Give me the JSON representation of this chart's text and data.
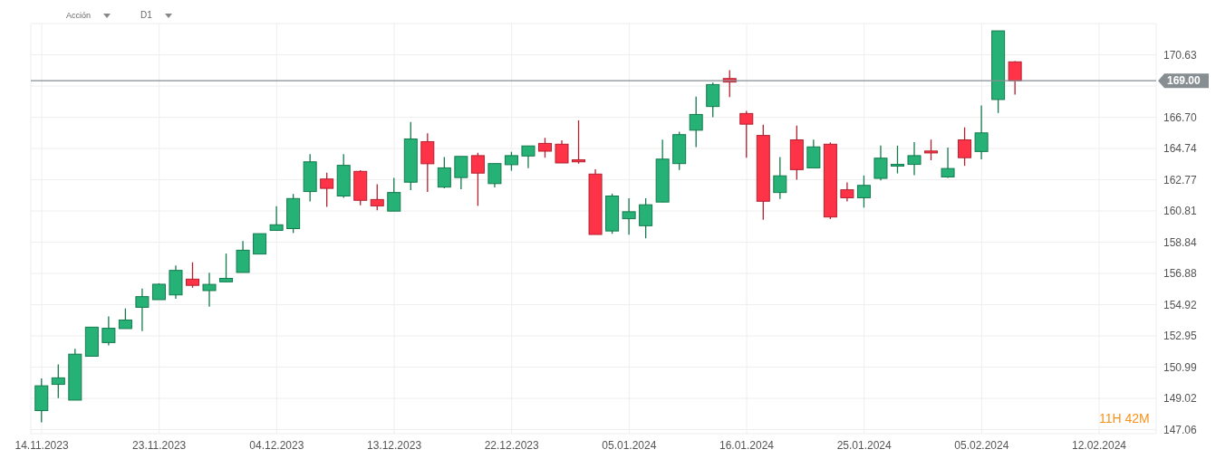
{
  "chart_data": {
    "type": "candlestick",
    "categories": [
      "14.11.2023",
      null,
      null,
      null,
      null,
      null,
      null,
      "23.11.2023",
      null,
      null,
      null,
      null,
      null,
      null,
      "04.12.2023",
      null,
      null,
      null,
      null,
      null,
      null,
      "13.12.2023",
      null,
      null,
      null,
      null,
      null,
      null,
      "22.12.2023",
      null,
      null,
      null,
      null,
      null,
      null,
      "05.01.2024",
      null,
      null,
      null,
      null,
      null,
      null,
      "16.01.2024",
      null,
      null,
      null,
      null,
      null,
      null,
      "25.01.2024",
      null,
      null,
      null,
      null,
      null,
      null,
      "05.02.2024",
      null,
      null,
      null,
      null,
      null,
      null,
      "12.02.2024"
    ],
    "ohlc": [
      [
        148.25,
        150.27,
        147.51,
        149.81
      ],
      [
        149.9,
        151.15,
        149.04,
        150.31
      ],
      [
        148.91,
        152.14,
        148.91,
        151.8
      ],
      [
        151.67,
        153.5,
        151.67,
        153.5
      ],
      [
        152.53,
        154.18,
        152.35,
        153.43
      ],
      [
        153.41,
        154.68,
        153.41,
        153.95
      ],
      [
        154.75,
        155.93,
        153.25,
        155.42
      ],
      [
        155.23,
        156.26,
        155.23,
        156.2
      ],
      [
        155.53,
        157.38,
        155.29,
        157.07
      ],
      [
        156.52,
        157.58,
        155.98,
        156.13
      ],
      [
        155.8,
        156.92,
        154.79,
        156.19
      ],
      [
        156.35,
        158.13,
        156.35,
        156.57
      ],
      [
        156.94,
        158.91,
        156.94,
        158.34
      ],
      [
        158.1,
        159.38,
        158.1,
        159.38
      ],
      [
        159.59,
        161.11,
        159.59,
        159.94
      ],
      [
        159.7,
        161.88,
        159.42,
        161.59
      ],
      [
        162.03,
        164.38,
        161.41,
        163.9
      ],
      [
        162.82,
        163.21,
        161.07,
        162.23
      ],
      [
        161.75,
        164.38,
        161.63,
        163.68
      ],
      [
        163.3,
        163.37,
        161.17,
        161.48
      ],
      [
        161.53,
        162.49,
        160.85,
        161.13
      ],
      [
        160.8,
        162.89,
        160.8,
        161.97
      ],
      [
        162.62,
        166.4,
        162.12,
        165.34
      ],
      [
        165.17,
        165.69,
        162.0,
        163.78
      ],
      [
        162.31,
        164.2,
        162.23,
        163.52
      ],
      [
        162.91,
        164.24,
        162.18,
        164.24
      ],
      [
        164.29,
        164.47,
        161.13,
        163.19
      ],
      [
        162.53,
        163.79,
        162.29,
        163.79
      ],
      [
        163.72,
        164.53,
        163.34,
        164.29
      ],
      [
        164.27,
        164.9,
        163.5,
        164.9
      ],
      [
        165.06,
        165.41,
        164.16,
        164.57
      ],
      [
        165.01,
        165.25,
        163.83,
        163.83
      ],
      [
        164.03,
        166.51,
        163.78,
        163.9
      ],
      [
        163.13,
        163.43,
        159.33,
        159.33
      ],
      [
        159.55,
        161.9,
        159.37,
        161.75
      ],
      [
        160.32,
        161.61,
        159.31,
        160.76
      ],
      [
        159.88,
        161.61,
        159.09,
        161.2
      ],
      [
        161.37,
        165.3,
        161.37,
        164.07
      ],
      [
        163.79,
        165.8,
        163.39,
        165.61
      ],
      [
        165.89,
        168.0,
        164.82,
        166.88
      ],
      [
        167.38,
        168.88,
        166.7,
        168.76
      ],
      [
        169.14,
        169.66,
        167.97,
        168.92
      ],
      [
        166.94,
        167.1,
        164.16,
        166.27
      ],
      [
        165.56,
        166.24,
        160.25,
        161.42
      ],
      [
        161.97,
        164.2,
        161.57,
        163.02
      ],
      [
        165.28,
        166.18,
        162.78,
        163.41
      ],
      [
        163.52,
        165.3,
        163.52,
        164.84
      ],
      [
        165.01,
        165.12,
        160.3,
        160.43
      ],
      [
        162.14,
        162.6,
        161.41,
        161.64
      ],
      [
        161.64,
        163.04,
        161.02,
        162.42
      ],
      [
        162.86,
        164.92,
        162.73,
        164.13
      ],
      [
        163.63,
        164.92,
        163.17,
        163.74
      ],
      [
        163.74,
        165.14,
        163.06,
        164.29
      ],
      [
        164.58,
        165.3,
        164.0,
        164.46
      ],
      [
        162.95,
        164.8,
        162.89,
        163.48
      ],
      [
        165.28,
        166.07,
        163.65,
        164.16
      ],
      [
        164.55,
        167.45,
        164.05,
        165.72
      ],
      [
        167.82,
        172.14,
        166.97,
        172.14
      ],
      [
        170.19,
        170.24,
        168.13,
        169.0
      ],
      null,
      null,
      null,
      null,
      null
    ],
    "colors": [
      "#26b276",
      "#26b276",
      "#26b276",
      "#26b276",
      "#26b276",
      "#26b276",
      "#26b276",
      "#26b276",
      "#26b276",
      "#ff3347",
      "#26b276",
      "#26b276",
      "#26b276",
      "#26b276",
      "#26b276",
      "#26b276",
      "#26b276",
      "#ff3347",
      "#26b276",
      "#ff3347",
      "#ff3347",
      "#26b276",
      "#26b276",
      "#ff3347",
      "#26b276",
      "#26b276",
      "#ff3347",
      "#26b276",
      "#26b276",
      "#26b276",
      "#ff3347",
      "#ff3347",
      "#ff3347",
      "#ff3347",
      "#26b276",
      "#26b276",
      "#26b276",
      "#26b276",
      "#26b276",
      "#26b276",
      "#26b276",
      "#ff3347",
      "#ff3347",
      "#ff3347",
      "#26b276",
      "#ff3347",
      "#26b276",
      "#ff3347",
      "#ff3347",
      "#26b276",
      "#26b276",
      "#26b276",
      "#26b276",
      "#ff3347",
      "#26b276",
      "#ff3347",
      "#26b276",
      "#26b276",
      "#ff3347",
      null,
      null,
      null,
      null,
      null
    ],
    "ylim": [
      146.8,
      172.6
    ],
    "yticks": [
      147.06,
      149.02,
      150.99,
      152.95,
      154.92,
      156.88,
      158.84,
      160.81,
      162.77,
      164.74,
      {
        "value": 166.7,
        "label": "166.70"
      },
      {
        "value": 168.67,
        "label": null
      },
      170.63
    ],
    "ref_lines": [
      {
        "axis": "y",
        "value": 169.0,
        "label": "169.00",
        "color": "#868e92"
      }
    ],
    "grid": true,
    "annotations": [
      "Acción",
      "D1",
      "11H 42M"
    ]
  }
}
